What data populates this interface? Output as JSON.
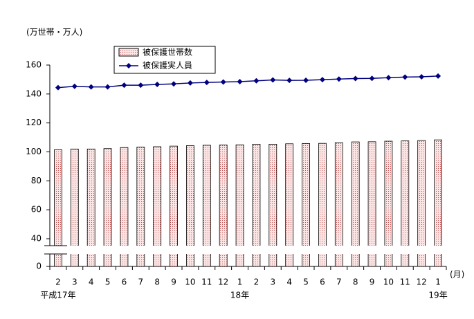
{
  "chart_data": {
    "type": "bar",
    "unit_label": "(万世帯・万人)",
    "x_unit": "(月)",
    "categories": [
      "2",
      "3",
      "4",
      "5",
      "6",
      "7",
      "8",
      "9",
      "10",
      "11",
      "12",
      "1",
      "2",
      "3",
      "4",
      "5",
      "6",
      "7",
      "8",
      "9",
      "10",
      "11",
      "12",
      "1"
    ],
    "year_labels": [
      {
        "index": 0,
        "label": "平成17年"
      },
      {
        "index": 11,
        "label": "18年"
      },
      {
        "index": 23,
        "label": "19年"
      }
    ],
    "series": [
      {
        "name": "被保護世帯数",
        "type": "bar",
        "color": "#f2c4c4",
        "values": [
          101.5,
          102.0,
          102.0,
          102.3,
          103.0,
          103.3,
          103.6,
          104.0,
          104.3,
          104.6,
          104.8,
          104.9,
          105.3,
          105.3,
          105.6,
          105.8,
          105.9,
          106.4,
          106.9,
          107.0,
          107.4,
          107.6,
          107.9,
          108.3
        ]
      },
      {
        "name": "被保護実人員",
        "type": "line",
        "color": "#000080",
        "values": [
          144.4,
          145.3,
          144.9,
          144.9,
          146.1,
          146.1,
          146.6,
          147.0,
          147.6,
          148.0,
          148.3,
          148.5,
          149.1,
          149.7,
          149.4,
          149.5,
          149.9,
          150.3,
          150.7,
          150.8,
          151.3,
          151.7,
          151.9,
          152.4
        ]
      }
    ],
    "ylim": [
      0,
      160
    ],
    "yticks": [
      0,
      40,
      60,
      80,
      100,
      120,
      140,
      160
    ],
    "axis_break": [
      0,
      40
    ]
  }
}
